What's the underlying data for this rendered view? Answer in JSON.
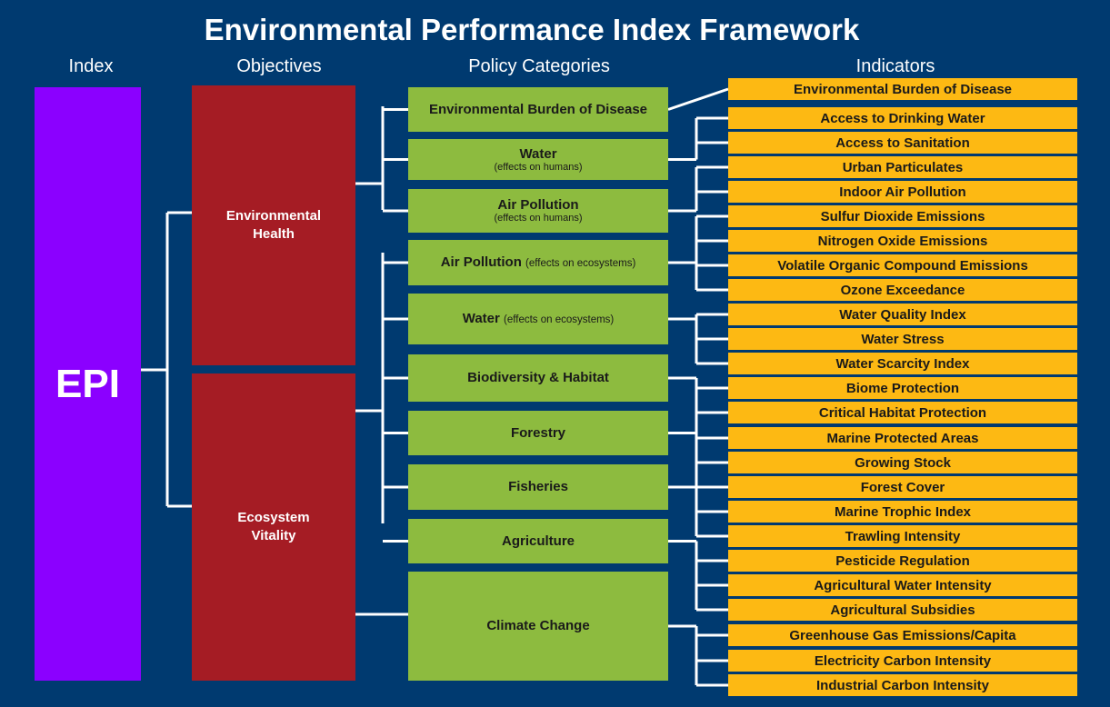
{
  "title": "Environmental Performance Index Framework",
  "headers": {
    "index": "Index",
    "objectives": "Objectives",
    "categories": "Policy Categories",
    "indicators": "Indicators"
  },
  "index": {
    "label": "EPI",
    "color": "#8b00ff"
  },
  "objectives": [
    {
      "label": "Environmental\nHealth",
      "color": "#a51c24"
    },
    {
      "label": "Ecosystem\nVitality",
      "color": "#a51c24"
    }
  ],
  "categories": [
    {
      "label": "Environmental Burden of Disease",
      "sub": "",
      "inline": ""
    },
    {
      "label": "Water",
      "sub": "(effects on humans)",
      "inline": ""
    },
    {
      "label": "Air Pollution",
      "sub": "(effects on humans)",
      "inline": ""
    },
    {
      "label": "Air Pollution",
      "sub": "",
      "inline": "(effects on ecosystems)"
    },
    {
      "label": "Water",
      "sub": "",
      "inline": "(effects on ecosystems)"
    },
    {
      "label": "Biodiversity & Habitat",
      "sub": "",
      "inline": ""
    },
    {
      "label": "Forestry",
      "sub": "",
      "inline": ""
    },
    {
      "label": "Fisheries",
      "sub": "",
      "inline": ""
    },
    {
      "label": "Agriculture",
      "sub": "",
      "inline": ""
    },
    {
      "label": "Climate Change",
      "sub": "",
      "inline": ""
    }
  ],
  "indicators": [
    "Environmental Burden of Disease",
    "Access to Drinking Water",
    "Access to Sanitation",
    "Urban Particulates",
    "Indoor Air Pollution",
    "Sulfur Dioxide Emissions",
    "Nitrogen Oxide Emissions",
    "Volatile Organic Compound Emissions",
    "Ozone Exceedance",
    "Water Quality Index",
    "Water Stress",
    "Water Scarcity Index",
    "Biome Protection",
    "Critical Habitat Protection",
    "Marine Protected Areas",
    "Growing Stock",
    "Forest Cover",
    "Marine Trophic Index",
    "Trawling Intensity",
    "Pesticide Regulation",
    "Agricultural Water Intensity",
    "Agricultural Subsidies",
    "Greenhouse Gas Emissions/Capita",
    "Electricity Carbon Intensity",
    "Industrial Carbon Intensity"
  ],
  "colors": {
    "background": "#003a70",
    "category": "#8dbb3f",
    "indicator": "#fdb913",
    "connector": "#ffffff"
  }
}
